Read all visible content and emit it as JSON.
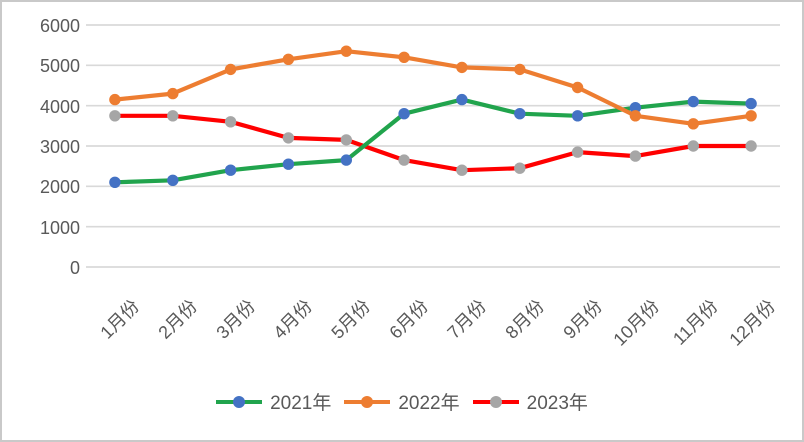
{
  "chart_data": {
    "type": "line",
    "title": "",
    "xlabel": "",
    "ylabel": "",
    "categories": [
      "1月份",
      "2月份",
      "3月份",
      "4月份",
      "5月份",
      "6月份",
      "7月份",
      "8月份",
      "9月份",
      "10月份",
      "11月份",
      "12月份"
    ],
    "series": [
      {
        "name": "2021年",
        "line_color": "#21A44D",
        "marker_color": "#4472C4",
        "values": [
          2100,
          2150,
          2400,
          2550,
          2650,
          3800,
          4150,
          3800,
          3750,
          3950,
          4100,
          4050
        ]
      },
      {
        "name": "2022年",
        "line_color": "#ED7D31",
        "marker_color": "#ED7D31",
        "values": [
          4150,
          4300,
          4900,
          5150,
          5350,
          5200,
          4950,
          4900,
          4450,
          3750,
          3550,
          3750
        ]
      },
      {
        "name": "2023年",
        "line_color": "#FF0000",
        "marker_color": "#A6A6A6",
        "values": [
          3750,
          3750,
          3600,
          3200,
          3150,
          2650,
          2400,
          2450,
          2850,
          2750,
          3000,
          3000
        ]
      }
    ],
    "ylim": [
      0,
      6000
    ],
    "yticks": [
      "6000",
      "5000",
      "4000",
      "3000",
      "2000",
      "1000",
      "0"
    ],
    "grid": true,
    "legend_position": "bottom-center"
  },
  "colors": {
    "axis_text": "#595959",
    "gridline": "#D9D9D9",
    "background": "#FFFFFF",
    "frame_border": "#C9C9C9"
  }
}
